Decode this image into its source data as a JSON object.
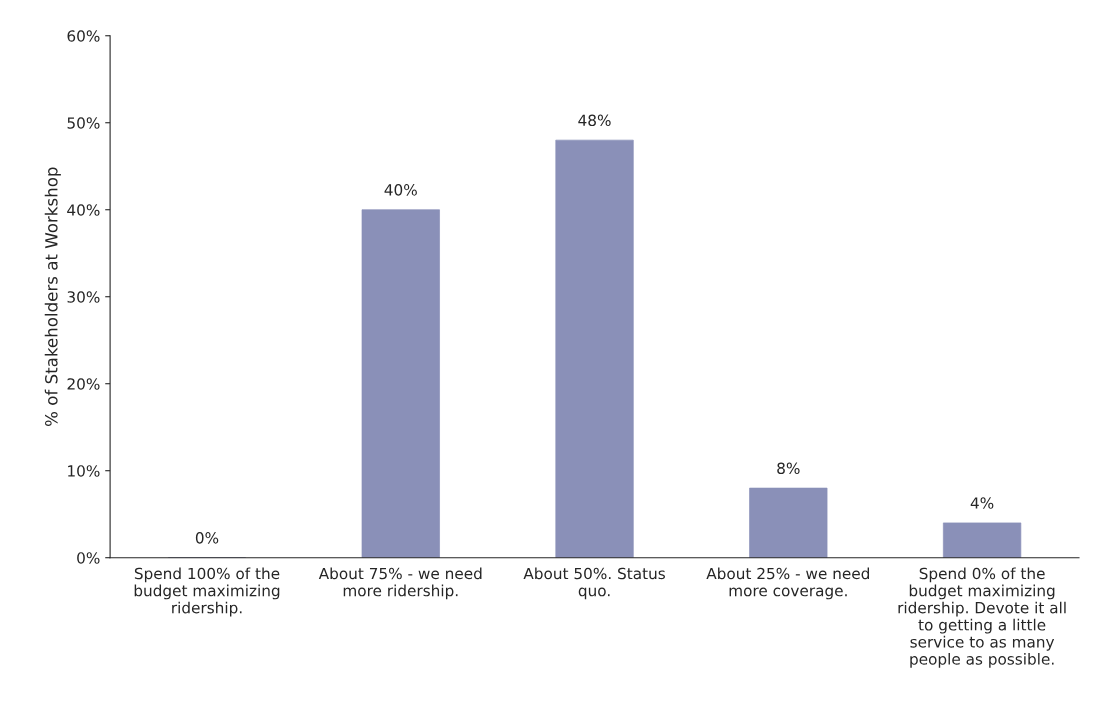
{
  "chart_data": {
    "type": "bar",
    "ylabel": "% of Stakeholders at Workshop",
    "categories": [
      "Spend 100% of the budget maximizing ridership.",
      "About 75% - we need more ridership.",
      "About 50%. Status quo.",
      "About 25% - we need more coverage.",
      "Spend 0% of the budget maximizing ridership. Devote it all to getting a little service to as many people as possible."
    ],
    "values": [
      0,
      40,
      48,
      8,
      4
    ],
    "value_labels": [
      "0%",
      "40%",
      "48%",
      "8%",
      "4%"
    ],
    "color": "#8a90b8",
    "ylim": [
      0,
      60
    ],
    "yticks": [
      {
        "value": 0,
        "label": "0%"
      },
      {
        "value": 10,
        "label": "10%"
      },
      {
        "value": 20,
        "label": "20%"
      },
      {
        "value": 30,
        "label": "30%"
      },
      {
        "value": 40,
        "label": "40%"
      },
      {
        "value": 50,
        "label": "50%"
      },
      {
        "value": 60,
        "label": "60%"
      }
    ],
    "grid": false,
    "legend": false
  }
}
